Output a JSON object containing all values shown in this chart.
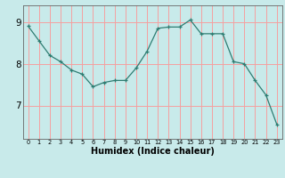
{
  "x": [
    0,
    1,
    2,
    3,
    4,
    5,
    6,
    7,
    8,
    9,
    10,
    11,
    12,
    13,
    14,
    15,
    16,
    17,
    18,
    19,
    20,
    21,
    22,
    23
  ],
  "y": [
    8.9,
    8.55,
    8.2,
    8.05,
    7.85,
    7.75,
    7.45,
    7.55,
    7.6,
    7.6,
    7.9,
    8.3,
    8.85,
    8.88,
    8.88,
    9.05,
    8.72,
    8.72,
    8.72,
    8.05,
    8.0,
    7.6,
    7.25,
    6.55
  ],
  "line_color": "#2e7d72",
  "bg_color": "#c8eaea",
  "grid_color": "#f5a0a0",
  "yticks": [
    7,
    8,
    9
  ],
  "xlabel": "Humidex (Indice chaleur)",
  "ylim": [
    6.2,
    9.4
  ],
  "xlim": [
    -0.5,
    23.5
  ]
}
